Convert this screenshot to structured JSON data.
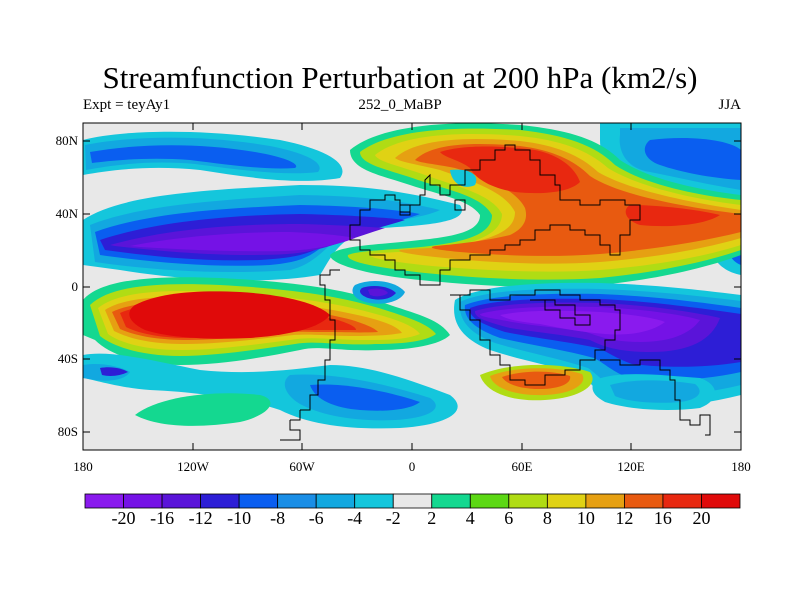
{
  "title": "Streamfunction Perturbation at 200 hPa (km2/s)",
  "subtitle_left": "Expt = teyAy1",
  "subtitle_center": "252_0_MaBP",
  "subtitle_right": "JJA",
  "y_ticks": [
    "80N",
    "40N",
    "0",
    "40S",
    "80S"
  ],
  "x_ticks": [
    "180",
    "120W",
    "60W",
    "0",
    "60E",
    "120E",
    "180"
  ],
  "colorbar": {
    "labels": [
      "-20",
      "-16",
      "-12",
      "-10",
      "-8",
      "-6",
      "-4",
      "-2",
      "2",
      "4",
      "6",
      "8",
      "10",
      "12",
      "16",
      "20"
    ],
    "colors": [
      "#8a1aee",
      "#7512e6",
      "#5a14d9",
      "#2d1ed6",
      "#0a5ef0",
      "#1a8ee6",
      "#12a8e0",
      "#14c6dc",
      "#e8e8e8",
      "#14d890",
      "#5cd814",
      "#b0dc14",
      "#e0d214",
      "#e6a012",
      "#e85a10",
      "#e82810",
      "#e00a0a"
    ]
  }
}
